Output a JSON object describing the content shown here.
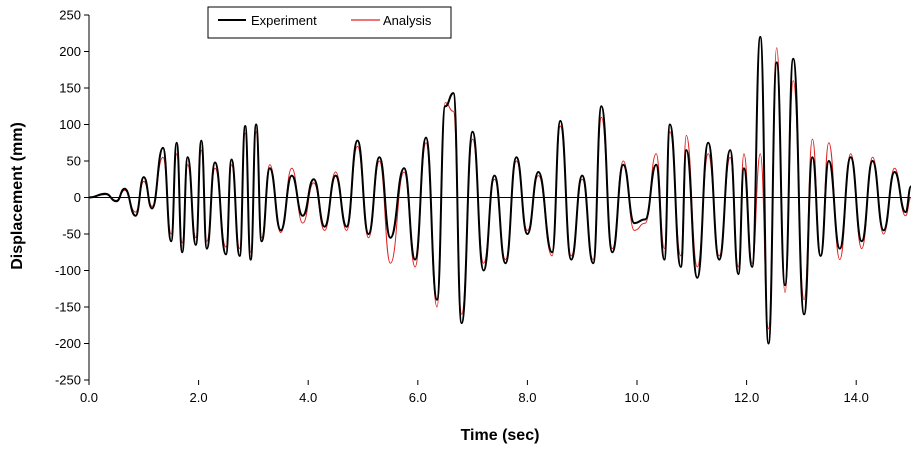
{
  "chart_data": {
    "type": "line",
    "title": "",
    "xlabel": "Time (sec)",
    "ylabel": "Displacement (mm)",
    "xlim": [
      0,
      15
    ],
    "ylim": [
      -250,
      250
    ],
    "x_ticks": [
      0,
      2,
      4,
      6,
      8,
      10,
      12,
      14
    ],
    "x_tick_labels": [
      "0.0",
      "2.0",
      "4.0",
      "6.0",
      "8.0",
      "10.0",
      "12.0",
      "14.0"
    ],
    "y_ticks": [
      250,
      200,
      150,
      100,
      50,
      0,
      -50,
      -100,
      -150,
      -200,
      -250
    ],
    "y_tick_labels": [
      "250",
      "200",
      "150",
      "100",
      "50",
      "0",
      "-50",
      "-100",
      "-150",
      "-200",
      "-250"
    ],
    "grid": false,
    "legend_position": "top-center",
    "series": [
      {
        "name": "Experiment",
        "color": "#000000",
        "x": [
          0.0,
          0.3,
          0.5,
          0.65,
          0.85,
          1.0,
          1.15,
          1.35,
          1.5,
          1.6,
          1.7,
          1.8,
          1.95,
          2.05,
          2.15,
          2.3,
          2.5,
          2.6,
          2.75,
          2.85,
          2.95,
          3.05,
          3.15,
          3.3,
          3.5,
          3.7,
          3.9,
          4.1,
          4.3,
          4.5,
          4.7,
          4.9,
          5.1,
          5.3,
          5.5,
          5.75,
          5.95,
          6.15,
          6.35,
          6.5,
          6.65,
          6.8,
          7.0,
          7.2,
          7.4,
          7.6,
          7.8,
          8.0,
          8.2,
          8.45,
          8.6,
          8.8,
          9.0,
          9.2,
          9.35,
          9.55,
          9.75,
          9.95,
          10.15,
          10.35,
          10.5,
          10.6,
          10.8,
          10.9,
          11.1,
          11.3,
          11.5,
          11.7,
          11.85,
          11.95,
          12.1,
          12.25,
          12.4,
          12.55,
          12.7,
          12.85,
          13.05,
          13.2,
          13.35,
          13.5,
          13.7,
          13.9,
          14.1,
          14.3,
          14.5,
          14.7,
          14.9,
          15.0
        ],
        "y": [
          0,
          5,
          -5,
          12,
          -25,
          28,
          -15,
          68,
          -60,
          75,
          -75,
          55,
          -65,
          78,
          -70,
          48,
          -78,
          52,
          -80,
          98,
          -85,
          100,
          -60,
          40,
          -45,
          30,
          -25,
          25,
          -40,
          30,
          -40,
          78,
          -50,
          55,
          -55,
          40,
          -85,
          82,
          -140,
          125,
          143,
          -172,
          90,
          -100,
          30,
          -90,
          55,
          -50,
          35,
          -75,
          105,
          -85,
          30,
          -90,
          125,
          -75,
          45,
          -35,
          -30,
          45,
          -85,
          100,
          -95,
          65,
          -110,
          75,
          -85,
          65,
          -105,
          40,
          -95,
          220,
          -200,
          185,
          -120,
          190,
          -160,
          55,
          -80,
          50,
          -70,
          55,
          -60,
          50,
          -45,
          35,
          -20,
          15
        ]
      },
      {
        "name": "Analysis",
        "color": "#e02020",
        "x": [
          0.0,
          0.3,
          0.5,
          0.65,
          0.85,
          1.0,
          1.15,
          1.35,
          1.5,
          1.6,
          1.7,
          1.8,
          1.95,
          2.05,
          2.15,
          2.3,
          2.5,
          2.6,
          2.75,
          2.85,
          2.95,
          3.05,
          3.15,
          3.3,
          3.5,
          3.7,
          3.9,
          4.1,
          4.3,
          4.5,
          4.7,
          4.9,
          5.1,
          5.3,
          5.5,
          5.75,
          5.95,
          6.15,
          6.35,
          6.5,
          6.65,
          6.8,
          7.0,
          7.2,
          7.4,
          7.6,
          7.8,
          8.0,
          8.2,
          8.45,
          8.6,
          8.8,
          9.0,
          9.2,
          9.35,
          9.55,
          9.75,
          9.95,
          10.15,
          10.35,
          10.5,
          10.6,
          10.8,
          10.9,
          11.1,
          11.3,
          11.5,
          11.7,
          11.85,
          11.95,
          12.1,
          12.25,
          12.4,
          12.55,
          12.7,
          12.85,
          13.05,
          13.2,
          13.35,
          13.5,
          13.7,
          13.9,
          14.1,
          14.3,
          14.5,
          14.7,
          14.9,
          15.0
        ],
        "y": [
          0,
          4,
          -4,
          10,
          -20,
          22,
          -12,
          55,
          -50,
          60,
          -62,
          45,
          -55,
          65,
          -60,
          40,
          -68,
          45,
          -70,
          88,
          -75,
          90,
          -55,
          45,
          -48,
          40,
          -35,
          20,
          -45,
          35,
          -45,
          70,
          -55,
          50,
          -90,
          35,
          -95,
          75,
          -150,
          130,
          118,
          -160,
          80,
          -90,
          25,
          -85,
          50,
          -45,
          30,
          -80,
          98,
          -80,
          25,
          -85,
          110,
          -70,
          50,
          -45,
          -35,
          60,
          -70,
          90,
          -80,
          85,
          -95,
          60,
          -80,
          55,
          -95,
          60,
          -90,
          60,
          -180,
          205,
          -130,
          160,
          -140,
          80,
          -80,
          75,
          -85,
          60,
          -70,
          55,
          -50,
          40,
          -25,
          0
        ]
      }
    ]
  }
}
